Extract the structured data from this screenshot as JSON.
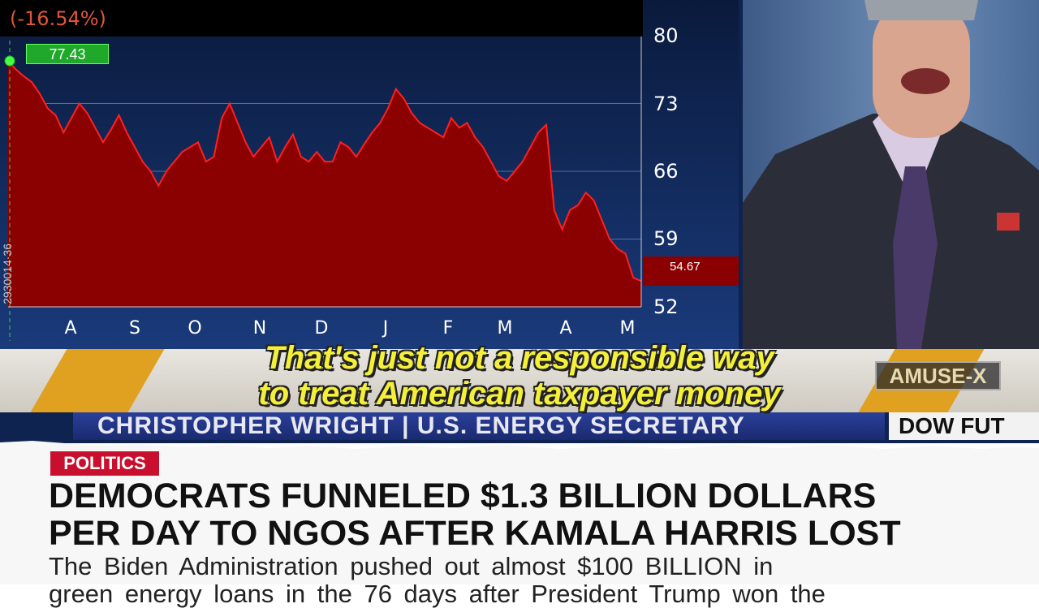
{
  "chart_data": {
    "type": "area",
    "change_label": "(-16.54%)",
    "high_label": "77.43",
    "last_label": "54.67",
    "yticks": [
      80,
      73,
      66,
      59,
      52
    ],
    "ylim": [
      52,
      80
    ],
    "xticks": [
      "A",
      "S",
      "O",
      "N",
      "D",
      "J",
      "F",
      "M",
      "A",
      "M"
    ],
    "values": [
      77.4,
      76.5,
      75.8,
      75.2,
      74,
      72.5,
      71.8,
      70,
      71.5,
      73,
      72,
      70.5,
      69,
      70.3,
      71.8,
      70,
      68.5,
      67,
      66,
      64.5,
      66,
      67,
      68,
      68.5,
      69,
      67,
      67.5,
      71.5,
      73,
      71,
      69,
      67.5,
      68.5,
      69.5,
      67,
      68.5,
      69.8,
      67.5,
      67,
      68,
      67,
      67,
      69,
      68.5,
      67.5,
      68.8,
      70,
      71,
      72.5,
      74.5,
      73.5,
      72,
      71,
      70.5,
      70,
      69.5,
      71.5,
      70.5,
      71,
      69.5,
      68.5,
      67,
      65.5,
      65,
      66,
      67,
      68.5,
      70,
      70.8,
      62,
      60,
      62,
      62.5,
      63.8,
      63,
      61,
      59,
      58,
      57.5,
      55,
      54.67
    ],
    "area_color": "#8b0000",
    "line_color": "#ff2020"
  },
  "subtitles": [
    "That's just not a responsible way",
    "to treat American taxpayer money"
  ],
  "side_code": "2930014·36",
  "lower_third": "CHRISTOPHER WRIGHT | U.S. ENERGY SECRETARY",
  "ticker": "DOW FUT",
  "logo": "AMUSE-X",
  "article": {
    "category": "POLITICS",
    "headline": [
      "DEMOCRATS FUNNELED $1.3 BILLION DOLLARS",
      "PER DAY TO NGOS AFTER KAMALA HARRIS LOST"
    ],
    "body": [
      "The Biden Administration pushed out almost $100 BILLION in",
      "green energy loans in the 76 days after President Trump won the"
    ]
  }
}
